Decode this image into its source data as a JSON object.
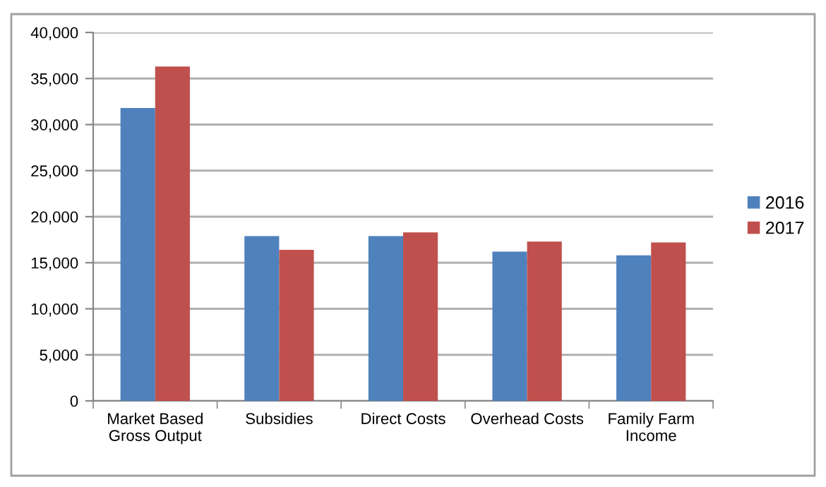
{
  "chart_data": {
    "type": "bar",
    "categories": [
      "Market Based\nGross Output",
      "Subsidies",
      "Direct Costs",
      "Overhead Costs",
      "Family Farm\nIncome"
    ],
    "series": [
      {
        "name": "2016",
        "color": "#4f81bd",
        "values": [
          31800,
          17900,
          17900,
          16200,
          15800
        ]
      },
      {
        "name": "2017",
        "color": "#c0504d",
        "values": [
          36300,
          16400,
          18300,
          17300,
          17200
        ]
      }
    ],
    "ylim": [
      0,
      40000
    ],
    "yticks": [
      {
        "value": 0,
        "label": "0"
      },
      {
        "value": 5000,
        "label": "5,000"
      },
      {
        "value": 10000,
        "label": "10,000"
      },
      {
        "value": 15000,
        "label": "15,000"
      },
      {
        "value": 20000,
        "label": "20,000"
      },
      {
        "value": 25000,
        "label": "25,000"
      },
      {
        "value": 30000,
        "label": "30,000"
      },
      {
        "value": 35000,
        "label": "35,000"
      },
      {
        "value": 40000,
        "label": "40,000"
      }
    ],
    "grid": "y",
    "legend": "right"
  }
}
